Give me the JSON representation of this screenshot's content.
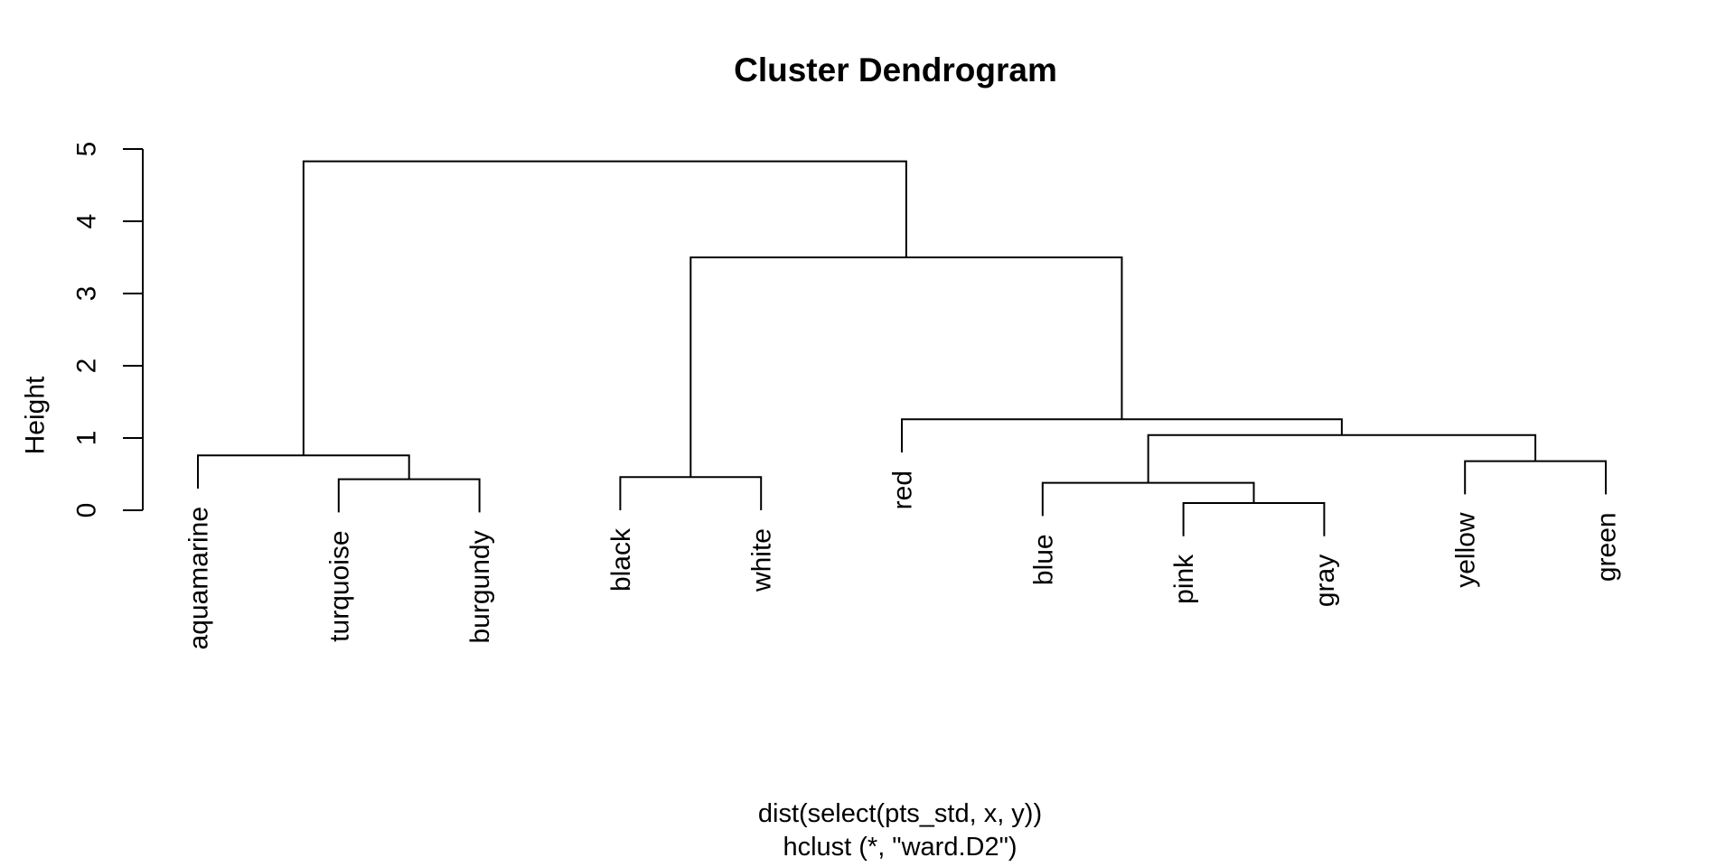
{
  "title": "Cluster Dendrogram",
  "axis": {
    "ylabel": "Height",
    "yticks": [
      "0",
      "1",
      "2",
      "3",
      "4",
      "5"
    ]
  },
  "caption": {
    "line1": "dist(select(pts_std, x, y))",
    "line2": "hclust (*, \"ward.D2\")"
  },
  "colors": {
    "line": "#000000",
    "text": "#000000",
    "background": "#ffffff"
  },
  "chart_data": {
    "type": "dendrogram",
    "title": "Cluster Dendrogram",
    "ylabel": "Height",
    "xlabel": "dist(select(pts_std, x, y))",
    "subtitle": "hclust (*, \"ward.D2\")",
    "ylim": [
      0,
      5
    ],
    "yticks": [
      0,
      1,
      2,
      3,
      4,
      5
    ],
    "grid": false,
    "leaf_order": [
      "aquamarine",
      "turquoise",
      "burgundy",
      "black",
      "white",
      "red",
      "blue",
      "pink",
      "gray",
      "yellow",
      "green"
    ],
    "hang_drop": 0.46,
    "merges": [
      {
        "id": "n1",
        "left": "pink",
        "right": "gray",
        "height": 0.1
      },
      {
        "id": "n2",
        "left": "blue",
        "right": "n1",
        "height": 0.38
      },
      {
        "id": "n3",
        "left": "turquoise",
        "right": "burgundy",
        "height": 0.43
      },
      {
        "id": "n4",
        "left": "black",
        "right": "white",
        "height": 0.46
      },
      {
        "id": "n5",
        "left": "yellow",
        "right": "green",
        "height": 0.68
      },
      {
        "id": "n6",
        "left": "aquamarine",
        "right": "n3",
        "height": 0.76
      },
      {
        "id": "n7",
        "left": "n2",
        "right": "n5",
        "height": 1.04
      },
      {
        "id": "n8",
        "left": "red",
        "right": "n7",
        "height": 1.26
      },
      {
        "id": "n9",
        "left": "n4",
        "right": "n8",
        "height": 3.5
      },
      {
        "id": "n10",
        "left": "n6",
        "right": "n9",
        "height": 4.83
      }
    ]
  }
}
